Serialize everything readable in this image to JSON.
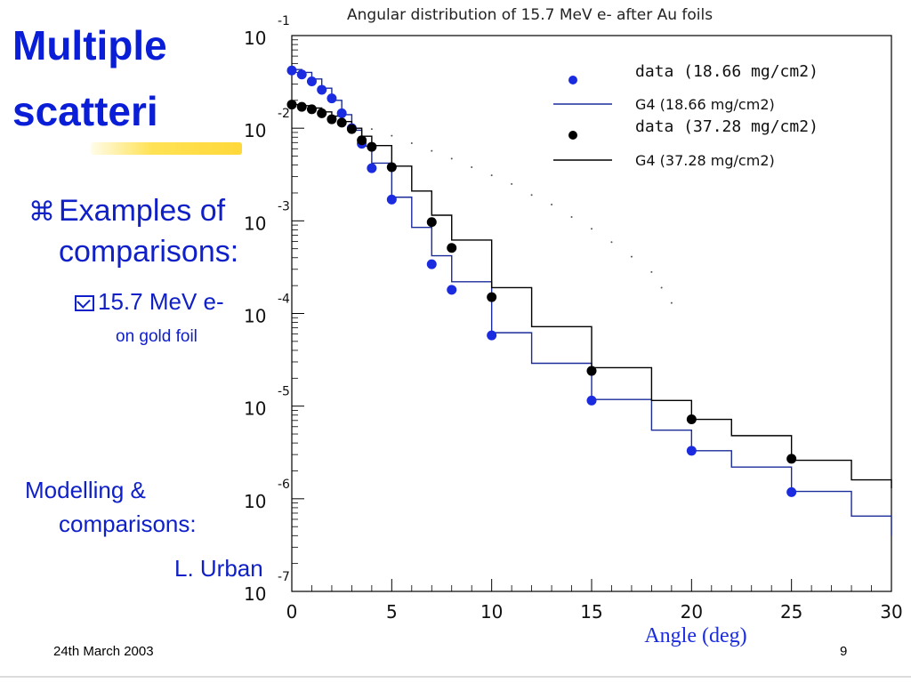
{
  "slide": {
    "title_line1": "Multiple",
    "title_line2": "scatteri",
    "bullet1_glyph": "⌘",
    "bullet1_line1": "Examples of",
    "bullet1_line2": "comparisons:",
    "bullet2_line1": "15.7 MeV e-",
    "bullet2_line2": "on gold foil",
    "modelling_line1": "Modelling &",
    "modelling_line2": "comparisons:",
    "author": "L. Urban",
    "date": "24th March 2003",
    "page_number": "9",
    "colors": {
      "title": "#0a1ed8",
      "text": "#1020c8",
      "highlight": "#ffe255"
    }
  },
  "chart_data": {
    "type": "scatter",
    "title": "Angular distribution of 15.7 MeV e- after Au foils",
    "xlabel": "Angle (deg)",
    "ylabel": "",
    "xlim": [
      0,
      30
    ],
    "ylim": [
      1e-07,
      0.1
    ],
    "yscale": "log",
    "x_ticks": [
      "0",
      "5",
      "10",
      "15",
      "20",
      "25",
      "30"
    ],
    "y_ticks": [
      {
        "base": "10",
        "exp": "-1",
        "value": 0.1
      },
      {
        "base": "10",
        "exp": "-2",
        "value": 0.01
      },
      {
        "base": "10",
        "exp": "-3",
        "value": 0.001
      },
      {
        "base": "10",
        "exp": "-4",
        "value": 0.0001
      },
      {
        "base": "10",
        "exp": "-5",
        "value": 1e-05
      },
      {
        "base": "10",
        "exp": "-6",
        "value": 1e-06
      },
      {
        "base": "10",
        "exp": "-7",
        "value": 1e-07
      }
    ],
    "legend_position": "top-right",
    "series": [
      {
        "name": "data (18.66 mg/cm2)",
        "kind": "points",
        "color": "#1a2be0",
        "x": [
          0,
          0.5,
          1,
          1.5,
          2,
          2.5,
          3,
          3.5,
          4,
          5,
          7,
          8,
          10,
          15,
          20,
          25
        ],
        "y": [
          0.042,
          0.038,
          0.032,
          0.026,
          0.021,
          0.0145,
          0.01,
          0.0068,
          0.0037,
          0.0017,
          0.00034,
          0.00018,
          5.8e-05,
          1.15e-05,
          3.3e-06,
          1.18e-06
        ]
      },
      {
        "name": "G4 (18.66 mg/cm2)",
        "kind": "line",
        "color": "#1a2b9a",
        "x": [
          0,
          0.5,
          1,
          1.5,
          2,
          2.5,
          3,
          3.5,
          4,
          5,
          6,
          7,
          8,
          10,
          12,
          15,
          18,
          20,
          22,
          25,
          28,
          30
        ],
        "y": [
          0.043,
          0.04,
          0.034,
          0.027,
          0.02,
          0.014,
          0.0095,
          0.0064,
          0.0042,
          0.0018,
          0.00085,
          0.00042,
          0.00022,
          6.2e-05,
          2.9e-05,
          1.18e-05,
          5.5e-06,
          3.3e-06,
          2.2e-06,
          1.2e-06,
          6.5e-07,
          4e-07
        ]
      },
      {
        "name": "data (37.28 mg/cm2)",
        "kind": "points",
        "color": "#000000",
        "x": [
          0,
          0.5,
          1,
          1.5,
          2,
          2.5,
          3,
          3.5,
          4,
          5,
          7,
          8,
          10,
          15,
          20,
          25
        ],
        "y": [
          0.018,
          0.017,
          0.016,
          0.0145,
          0.0125,
          0.0115,
          0.0098,
          0.0074,
          0.0063,
          0.0038,
          0.00097,
          0.00051,
          0.00015,
          2.4e-05,
          7.2e-06,
          2.7e-06
        ]
      },
      {
        "name": "G4 (37.28 mg/cm2)",
        "kind": "line",
        "color": "#000000",
        "x": [
          0,
          0.5,
          1,
          1.5,
          2,
          2.5,
          3,
          3.5,
          4,
          5,
          6,
          7,
          8,
          10,
          12,
          15,
          18,
          20,
          22,
          25,
          28,
          30
        ],
        "y": [
          0.018,
          0.0175,
          0.0165,
          0.015,
          0.0135,
          0.0118,
          0.01,
          0.0082,
          0.0065,
          0.0039,
          0.0021,
          0.00115,
          0.00062,
          0.00019,
          7.2e-05,
          2.6e-05,
          1.15e-05,
          7.2e-06,
          4.8e-06,
          2.6e-06,
          1.6e-06,
          1.3e-06
        ]
      }
    ],
    "dotted_trace": {
      "color": "#555555",
      "x": [
        4,
        5,
        6,
        7,
        8,
        9,
        10,
        11,
        12,
        13,
        14,
        15,
        16,
        17,
        18,
        18.5,
        19
      ],
      "y": [
        0.0098,
        0.0083,
        0.0069,
        0.0057,
        0.0047,
        0.0038,
        0.0031,
        0.0025,
        0.0019,
        0.0015,
        0.0011,
        0.00082,
        0.00059,
        0.00041,
        0.00028,
        0.00019,
        0.00013
      ]
    }
  }
}
